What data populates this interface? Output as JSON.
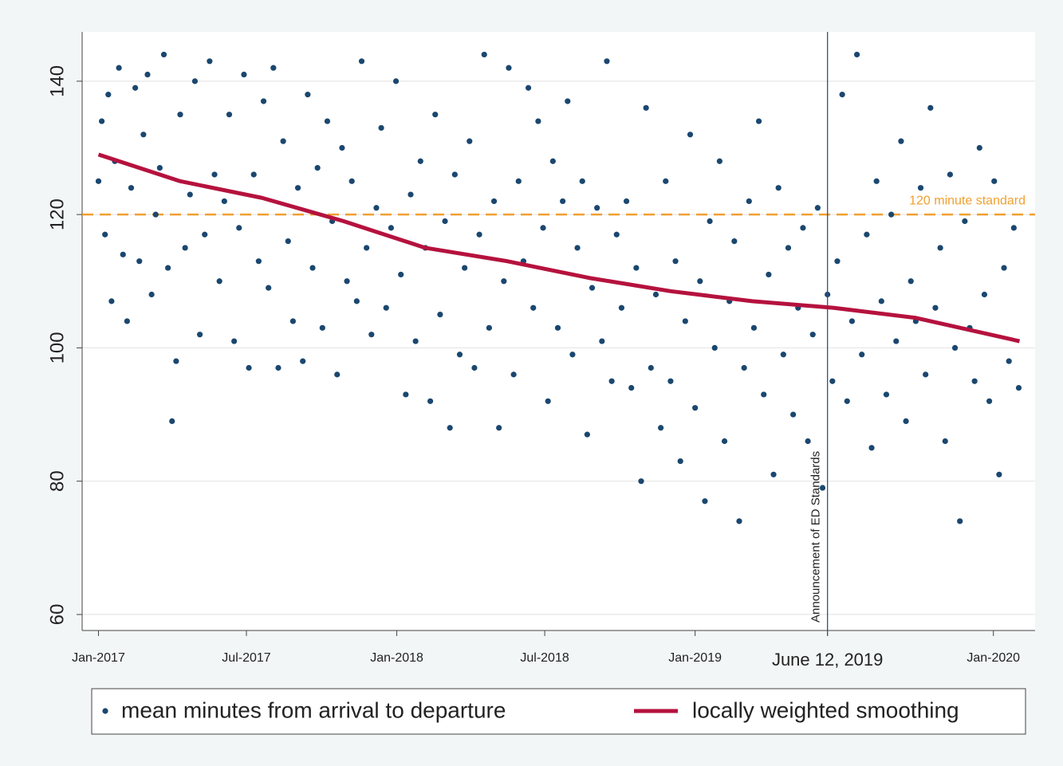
{
  "chart_data": {
    "type": "scatter",
    "x": [
      0,
      4,
      8,
      12,
      16,
      20,
      25,
      30,
      35,
      40,
      45,
      50,
      55,
      60,
      65,
      70,
      75,
      80,
      85,
      90,
      95,
      100,
      106,
      112,
      118,
      124,
      130,
      136,
      142,
      148,
      154,
      160,
      166,
      172,
      178,
      184,
      190,
      196,
      202,
      208,
      214,
      220,
      226,
      232,
      238,
      244,
      250,
      256,
      262,
      268,
      274,
      280,
      286,
      292,
      298,
      304,
      310,
      316,
      322,
      328,
      334,
      340,
      346,
      352,
      358,
      364,
      370,
      376,
      382,
      388,
      394,
      400,
      406,
      412,
      418,
      424,
      430,
      436,
      442,
      448,
      454,
      460,
      466,
      472,
      478,
      484,
      490,
      496,
      502,
      508,
      514,
      520,
      526,
      532,
      538,
      544,
      550,
      556,
      562,
      568,
      574,
      580,
      586,
      592,
      598,
      604,
      610,
      616,
      622,
      628,
      634,
      640,
      646,
      652,
      658,
      664,
      670,
      676,
      682,
      688,
      694,
      700,
      706,
      712,
      718,
      724,
      730,
      736,
      742,
      748,
      754,
      760,
      766,
      772,
      778,
      784,
      790,
      796,
      802,
      808,
      814,
      820,
      826,
      832,
      838,
      844,
      850,
      856,
      862,
      868,
      874,
      880,
      886,
      892,
      898,
      904,
      910,
      916,
      922,
      928,
      934,
      940,
      946,
      952,
      958,
      964,
      970,
      976,
      982,
      988,
      994,
      1000,
      1006,
      1012,
      1018,
      1024,
      1030,
      1036,
      1042,
      1048,
      1054,
      1060,
      1066,
      1072,
      1078,
      1084,
      1090,
      1096,
      1102,
      1108,
      1114,
      1120,
      1126
    ],
    "series": [
      {
        "name": "mean minutes from arrival to departure",
        "color": "#1a476f",
        "values": [
          125,
          134,
          117,
          138,
          107,
          128,
          142,
          114,
          104,
          124,
          139,
          113,
          132,
          141,
          108,
          120,
          127,
          144,
          112,
          89,
          98,
          135,
          115,
          123,
          140,
          102,
          117,
          143,
          126,
          110,
          122,
          135,
          101,
          118,
          141,
          97,
          126,
          113,
          137,
          109,
          142,
          97,
          131,
          116,
          104,
          124,
          98,
          138,
          112,
          127,
          103,
          134,
          119,
          96,
          130,
          110,
          125,
          107,
          143,
          115,
          102,
          121,
          133,
          106,
          118,
          140,
          111,
          93,
          123,
          101,
          128,
          115,
          92,
          135,
          105,
          119,
          88,
          126,
          99,
          112,
          131,
          97,
          117,
          144,
          103,
          122,
          88,
          110,
          142,
          96,
          125,
          113,
          139,
          106,
          134,
          118,
          92,
          128,
          103,
          122,
          137,
          99,
          115,
          125,
          87,
          109,
          121,
          101,
          143,
          95,
          117,
          106,
          122,
          94,
          112,
          80,
          136,
          97,
          108,
          88,
          125,
          95,
          113,
          83,
          104,
          132,
          91,
          110,
          77,
          119,
          100,
          128,
          86,
          107,
          116,
          74,
          97,
          122,
          103,
          134,
          93,
          111,
          81,
          124,
          99,
          115,
          90,
          106,
          118,
          86,
          102,
          121,
          79,
          108,
          95,
          113,
          138,
          92,
          104,
          144,
          99,
          117,
          85,
          125,
          107,
          93,
          120,
          101,
          131,
          89,
          110,
          104,
          124,
          96,
          136,
          106,
          115,
          86,
          126,
          100,
          74,
          119,
          103,
          95,
          130,
          108,
          92,
          125,
          81,
          112,
          98,
          118,
          94
        ]
      },
      {
        "name": "locally weighted smoothing",
        "color": "#b5123e",
        "x": [
          0,
          100,
          200,
          300,
          400,
          500,
          600,
          700,
          800,
          900,
          1000,
          1127
        ],
        "values": [
          129,
          125,
          122.5,
          119,
          115,
          113,
          110.5,
          108.5,
          107,
          106,
          104.5,
          101
        ]
      }
    ],
    "xlim": [
      -20,
      1146
    ],
    "ylim": [
      57.6,
      147.4
    ],
    "xticks": [
      {
        "value": 0,
        "label": "Jan-2017"
      },
      {
        "value": 181,
        "label": "Jul-2017"
      },
      {
        "value": 365,
        "label": "Jan-2018"
      },
      {
        "value": 546,
        "label": "Jul-2018"
      },
      {
        "value": 730,
        "label": "Jan-2019"
      },
      {
        "value": 1095,
        "label": "Jan-2020"
      }
    ],
    "yticks": [
      60,
      80,
      100,
      120,
      140
    ],
    "grid": true,
    "vline": {
      "x": {
        "value": 892,
        "label": "June 12, 2019"
      },
      "label": "Announcement of ED Standards"
    },
    "hline": {
      "y": 120,
      "label": "120 minute standard",
      "color": "#f0a030"
    },
    "legend": "bottom"
  }
}
